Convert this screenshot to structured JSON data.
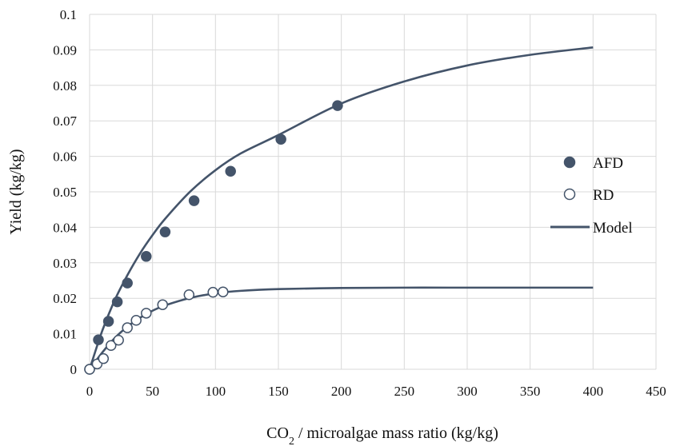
{
  "chart_data": {
    "type": "scatter",
    "xlabel_prefix": "CO",
    "xlabel_sub": "2",
    "xlabel_suffix": " / microalgae mass ratio (kg/kg)",
    "ylabel": "Yield (kg/kg)",
    "xlim": [
      0,
      450
    ],
    "ylim": [
      0,
      0.1
    ],
    "x_ticks": [
      0,
      50,
      100,
      150,
      200,
      250,
      300,
      350,
      400,
      450
    ],
    "y_ticks": [
      0,
      0.01,
      0.02,
      0.03,
      0.04,
      0.05,
      0.06,
      0.07,
      0.08,
      0.09,
      0.1
    ],
    "y_tick_labels": [
      "0",
      "0.01",
      "0.02",
      "0.03",
      "0.04",
      "0.05",
      "0.06",
      "0.07",
      "0.08",
      "0.09",
      "0.1"
    ],
    "grid": true,
    "legend_position": "right",
    "colors": {
      "series": "#44546a",
      "grid": "#d9d9d9"
    },
    "series": [
      {
        "name": "AFD",
        "marker": "filled-circle",
        "x": [
          0,
          7,
          15,
          22,
          30,
          45,
          60,
          83,
          112,
          152,
          197
        ],
        "y": [
          0,
          0.0083,
          0.0135,
          0.019,
          0.0243,
          0.0318,
          0.0387,
          0.0475,
          0.0558,
          0.0648,
          0.0743
        ]
      },
      {
        "name": "RD",
        "marker": "open-circle",
        "x": [
          0,
          6,
          11,
          17,
          23,
          30,
          37,
          45,
          58,
          79,
          98,
          106
        ],
        "y": [
          0,
          0.0015,
          0.003,
          0.0067,
          0.0082,
          0.0117,
          0.0138,
          0.0158,
          0.0182,
          0.021,
          0.0217,
          0.0218
        ]
      },
      {
        "name": "Model",
        "marker": "line",
        "curves": [
          {
            "x": [
              0,
              10,
              20,
              30,
              40,
              50,
              60,
              80,
              100,
              120,
              150,
              200,
              250,
              300,
              350,
              400
            ],
            "y": [
              0,
              0.0108,
              0.0195,
              0.0265,
              0.0326,
              0.0378,
              0.0424,
              0.0501,
              0.0561,
              0.0608,
              0.066,
              0.0749,
              0.0811,
              0.0856,
              0.0886,
              0.0907
            ]
          },
          {
            "x": [
              0,
              10,
              20,
              30,
              40,
              50,
              60,
              80,
              100,
              120,
              150,
              200,
              250,
              300,
              350,
              400
            ],
            "y": [
              0,
              0.0047,
              0.0088,
              0.012,
              0.0145,
              0.0165,
              0.018,
              0.0201,
              0.0214,
              0.0221,
              0.0226,
              0.0229,
              0.023,
              0.023,
              0.023,
              0.023
            ]
          }
        ]
      }
    ]
  }
}
